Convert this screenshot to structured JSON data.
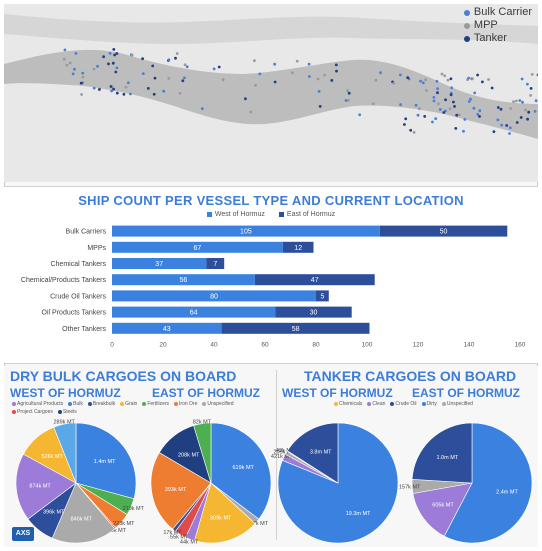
{
  "map": {
    "legend": [
      {
        "label": "Bulk Carrier",
        "color": "#4a7fd6"
      },
      {
        "label": "MPP",
        "color": "#9a9a9a"
      },
      {
        "label": "Tanker",
        "color": "#1f3f80"
      }
    ]
  },
  "colors": {
    "west": "#3b82e0",
    "east": "#2d4e9a",
    "title": "#3b7dd8"
  },
  "chart_data": [
    {
      "type": "bar",
      "orientation": "horizontal",
      "stacked": true,
      "title": "SHIP COUNT PER VESSEL TYPE AND CURRENT LOCATION",
      "categories": [
        "Bulk Carriers",
        "MPPs",
        "Chemical Tankers",
        "Chemical/Products Tankers",
        "Crude Oil Tankers",
        "Oil Products Tankers",
        "Other Tankers"
      ],
      "series": [
        {
          "name": "West of Hormuz",
          "values": [
            105,
            67,
            37,
            56,
            80,
            64,
            43
          ],
          "color": "#3b82e0"
        },
        {
          "name": "East of Hormuz",
          "values": [
            50,
            12,
            7,
            47,
            5,
            30,
            58
          ],
          "color": "#2d4e9a"
        }
      ],
      "xticks": [
        0,
        20,
        40,
        60,
        80,
        100,
        120,
        140,
        160
      ],
      "xlim": [
        0,
        160
      ],
      "legend": "top-center"
    },
    {
      "type": "pie",
      "group": "DRY BULK CARGOES ON BOARD",
      "title": "WEST OF HORMUZ",
      "legend": [
        {
          "name": "Agricultural Products",
          "color": "#9d7bd8"
        },
        {
          "name": "Bulk",
          "color": "#3b82e0"
        },
        {
          "name": "Breakbulk",
          "color": "#2d4e9a"
        },
        {
          "name": "Grain",
          "color": "#f5b731"
        },
        {
          "name": "Fertilizers",
          "color": "#4caf50"
        },
        {
          "name": "Iron Ore",
          "color": "#ef7d31"
        },
        {
          "name": "Unspecified",
          "color": "#aaaaaa"
        },
        {
          "name": "Project Cargoes",
          "color": "#e04a4a"
        },
        {
          "name": "Steels",
          "color": "#1f3f80"
        }
      ],
      "slices": [
        {
          "label": "1.4m MT",
          "value": 1400,
          "color": "#3b82e0"
        },
        {
          "label": "219k MT",
          "value": 219,
          "color": "#4caf50"
        },
        {
          "label": "223k MT",
          "value": 223,
          "color": "#ef7d31"
        },
        {
          "label": "18k MT",
          "value": 18,
          "color": "#e04a4a"
        },
        {
          "label": "846k MT",
          "value": 846,
          "color": "#aaaaaa"
        },
        {
          "label": "396k MT",
          "value": 396,
          "color": "#2d4e9a"
        },
        {
          "label": "874k MT",
          "value": 874,
          "color": "#9d7bd8"
        },
        {
          "label": "526k MT",
          "value": 526,
          "color": "#f5b731"
        },
        {
          "label": "289k MT",
          "value": 289,
          "color": "#5ba8e8"
        }
      ]
    },
    {
      "type": "pie",
      "group": "DRY BULK CARGOES ON BOARD",
      "title": "EAST OF HORMUZ",
      "slices": [
        {
          "label": "619k MT",
          "value": 619,
          "color": "#3b82e0"
        },
        {
          "label": "27k MT",
          "value": 27,
          "color": "#aaaaaa"
        },
        {
          "label": "309k MT",
          "value": 309,
          "color": "#f5b731"
        },
        {
          "label": "44k MT",
          "value": 44,
          "color": "#9d7bd8"
        },
        {
          "label": "55k MT",
          "value": 55,
          "color": "#e04a4a"
        },
        {
          "label": "17k MT",
          "value": 17,
          "color": "#2d4e9a"
        },
        {
          "label": "393k MT",
          "value": 393,
          "color": "#ef7d31"
        },
        {
          "label": "208k MT",
          "value": 208,
          "color": "#1f3f80"
        },
        {
          "label": "82k MT",
          "value": 82,
          "color": "#4caf50"
        }
      ]
    },
    {
      "type": "pie",
      "group": "TANKER CARGOES ON BOARD",
      "title": "WEST OF HORMUZ",
      "legend": [
        {
          "name": "Chemicals",
          "color": "#f5b731"
        },
        {
          "name": "Clean",
          "color": "#9d7bd8"
        },
        {
          "name": "Crude Oil",
          "color": "#2d4e9a"
        },
        {
          "name": "Dirty",
          "color": "#3b82e0"
        },
        {
          "name": "Unspecified",
          "color": "#aaaaaa"
        }
      ],
      "slices": [
        {
          "label": "19.3m MT",
          "value": 19300,
          "color": "#3b82e0"
        },
        {
          "label": "421k MT",
          "value": 421,
          "color": "#9d7bd8"
        },
        {
          "label": "205k MT",
          "value": 205,
          "color": "#aaaaaa"
        },
        {
          "label": "49k MT",
          "value": 49,
          "color": "#f5b731"
        },
        {
          "label": "3.8m MT",
          "value": 3800,
          "color": "#2d4e9a"
        }
      ]
    },
    {
      "type": "pie",
      "group": "TANKER CARGOES ON BOARD",
      "title": "EAST OF HORMUZ",
      "slices": [
        {
          "label": "2.4m MT",
          "value": 2400,
          "color": "#3b82e0"
        },
        {
          "label": "605k MT",
          "value": 605,
          "color": "#9d7bd8"
        },
        {
          "label": "157k MT",
          "value": 157,
          "color": "#aaaaaa"
        },
        {
          "label": "1.0m MT",
          "value": 1000,
          "color": "#2d4e9a"
        }
      ]
    }
  ],
  "logo_text": "AXS"
}
